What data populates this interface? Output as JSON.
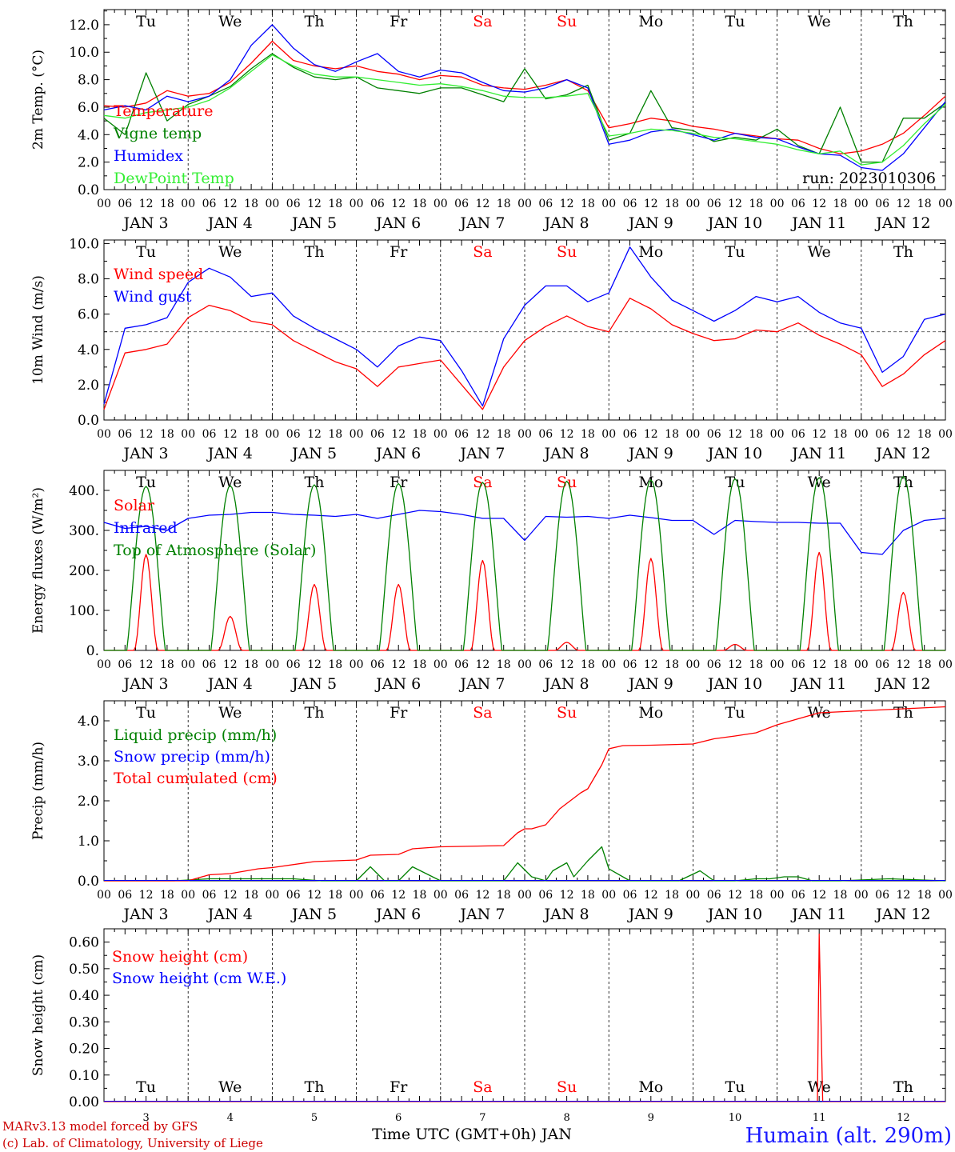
{
  "chart_data": [
    {
      "type": "line",
      "ylabel": "2m Temp. (°C)",
      "ylim": [
        0,
        13.1
      ],
      "yticks": [
        0,
        2,
        4,
        6,
        8,
        10,
        12
      ],
      "ytick_labels": [
        "0.0",
        "2.0",
        "4.0",
        "6.0",
        "8.0",
        "10.0",
        "12.0"
      ],
      "annotation": "run: 2023010306",
      "legend": "top-left",
      "x": [
        0,
        6,
        12,
        18,
        24,
        30,
        36,
        42,
        48,
        54,
        60,
        66,
        72,
        78,
        84,
        90,
        96,
        102,
        108,
        114,
        120,
        126,
        132,
        138,
        144,
        150,
        156,
        162,
        168,
        174,
        180,
        186,
        192,
        198,
        204,
        210,
        216,
        222,
        228,
        234,
        240
      ],
      "series": [
        {
          "name": "Temperature",
          "color": "#ff0000",
          "values": [
            6.1,
            6.0,
            6.3,
            7.2,
            6.8,
            7.0,
            7.8,
            9.2,
            10.8,
            9.4,
            9.0,
            8.8,
            9.0,
            8.6,
            8.4,
            8.0,
            8.3,
            8.2,
            7.6,
            7.4,
            7.3,
            7.6,
            8.0,
            7.2,
            4.5,
            4.8,
            5.2,
            5.0,
            4.6,
            4.4,
            4.1,
            3.9,
            3.7,
            3.6,
            3.0,
            2.6,
            2.8,
            3.3,
            4.1,
            5.4,
            6.8
          ]
        },
        {
          "name": "Vigne temp",
          "color": "#008000",
          "values": [
            5.2,
            4.0,
            8.5,
            5.0,
            6.2,
            6.8,
            7.5,
            8.8,
            9.9,
            8.9,
            8.2,
            8.0,
            8.2,
            7.4,
            7.2,
            7.0,
            7.4,
            7.4,
            6.9,
            6.4,
            8.8,
            6.6,
            6.9,
            7.6,
            3.6,
            4.1,
            7.2,
            4.5,
            4.3,
            3.5,
            3.8,
            3.6,
            4.4,
            3.2,
            2.6,
            6.0,
            2.0,
            2.0,
            5.2,
            5.2,
            6.3
          ]
        },
        {
          "name": "Humidex",
          "color": "#0000ff",
          "values": [
            5.8,
            6.1,
            5.8,
            6.8,
            6.4,
            6.8,
            8.0,
            10.5,
            12.0,
            10.3,
            9.1,
            8.6,
            9.3,
            9.9,
            8.6,
            8.2,
            8.7,
            8.5,
            7.8,
            7.2,
            7.1,
            7.4,
            8.0,
            7.4,
            3.3,
            3.6,
            4.2,
            4.4,
            4.0,
            3.6,
            4.1,
            3.8,
            3.7,
            3.1,
            2.6,
            2.5,
            1.6,
            1.4,
            2.6,
            4.5,
            6.4
          ]
        },
        {
          "name": "DewPoint Temp",
          "color": "#33ee33",
          "values": [
            5.4,
            5.2,
            5.6,
            5.8,
            6.0,
            6.5,
            7.4,
            8.6,
            9.8,
            9.0,
            8.4,
            8.2,
            8.2,
            8.0,
            7.8,
            7.6,
            7.7,
            7.5,
            7.2,
            6.8,
            6.7,
            6.7,
            6.8,
            7.0,
            3.9,
            4.1,
            4.4,
            4.3,
            4.1,
            3.8,
            3.7,
            3.5,
            3.3,
            2.9,
            2.6,
            2.8,
            1.8,
            2.0,
            3.2,
            4.8,
            6.2
          ]
        }
      ]
    },
    {
      "type": "line",
      "ylabel": "10m Wind (m/s)",
      "ylim": [
        0,
        10.2
      ],
      "yticks": [
        0,
        2,
        4,
        6,
        8,
        10
      ],
      "ytick_labels": [
        "0.0",
        "2.0",
        "4.0",
        "6.0",
        "8.0",
        "10.0"
      ],
      "reference_line": 5.0,
      "legend": "top-left",
      "x": [
        0,
        6,
        12,
        18,
        24,
        30,
        36,
        42,
        48,
        54,
        60,
        66,
        72,
        78,
        84,
        90,
        96,
        102,
        108,
        114,
        120,
        126,
        132,
        138,
        144,
        150,
        156,
        162,
        168,
        174,
        180,
        186,
        192,
        198,
        204,
        210,
        216,
        222,
        228,
        234,
        240
      ],
      "series": [
        {
          "name": "Wind speed",
          "color": "#ff0000",
          "values": [
            0.6,
            3.8,
            4.0,
            4.3,
            5.8,
            6.5,
            6.2,
            5.6,
            5.4,
            4.5,
            3.9,
            3.3,
            2.9,
            1.9,
            3.0,
            3.2,
            3.4,
            2.0,
            0.6,
            3.0,
            4.5,
            5.3,
            5.9,
            5.3,
            5.0,
            6.9,
            6.3,
            5.4,
            4.9,
            4.5,
            4.6,
            5.1,
            5.0,
            5.5,
            4.8,
            4.3,
            3.7,
            1.9,
            2.6,
            3.7,
            4.5
          ]
        },
        {
          "name": "Wind gust",
          "color": "#0000ff",
          "values": [
            0.9,
            5.2,
            5.4,
            5.8,
            7.8,
            8.6,
            8.1,
            7.0,
            7.2,
            5.9,
            5.2,
            4.6,
            4.0,
            3.0,
            4.2,
            4.7,
            4.5,
            2.8,
            0.8,
            4.6,
            6.5,
            7.6,
            7.6,
            6.7,
            7.2,
            9.8,
            8.1,
            6.8,
            6.2,
            5.6,
            6.2,
            7.0,
            6.7,
            7.0,
            6.1,
            5.5,
            5.2,
            2.7,
            3.6,
            5.7,
            6.0
          ]
        }
      ]
    },
    {
      "type": "line",
      "ylabel": "Energy fluxes (W/m²)",
      "ylim": [
        0,
        450
      ],
      "yticks": [
        0,
        100,
        200,
        300,
        400
      ],
      "ytick_labels": [
        "0.",
        "100.",
        "200.",
        "300.",
        "400."
      ],
      "legend": "top-left",
      "series": [
        {
          "name": "Solar",
          "color": "#ff0000",
          "daily_peaks": [
            240,
            85,
            165,
            165,
            225,
            20,
            230,
            15,
            245,
            145
          ]
        },
        {
          "name": "Infrared",
          "color": "#0000ff",
          "x": [
            0,
            6,
            12,
            18,
            24,
            30,
            36,
            42,
            48,
            54,
            60,
            66,
            72,
            78,
            84,
            90,
            96,
            102,
            108,
            114,
            120,
            126,
            132,
            138,
            144,
            150,
            156,
            162,
            168,
            174,
            180,
            186,
            192,
            198,
            204,
            210,
            216,
            222,
            228,
            234,
            240
          ],
          "values": [
            320,
            305,
            310,
            300,
            330,
            338,
            340,
            345,
            345,
            340,
            338,
            335,
            340,
            330,
            340,
            350,
            347,
            340,
            330,
            330,
            275,
            335,
            333,
            335,
            330,
            338,
            332,
            325,
            325,
            290,
            325,
            322,
            320,
            320,
            318,
            318,
            245,
            240,
            300,
            325,
            330
          ]
        },
        {
          "name": "Top of Atmosphere (Solar)",
          "color": "#008000",
          "daily_peaks": [
            410,
            412,
            414,
            417,
            420,
            423,
            426,
            429,
            432,
            435
          ]
        }
      ]
    },
    {
      "type": "line",
      "ylabel": "Precip (mm/h)",
      "ylim": [
        0,
        4.5
      ],
      "yticks": [
        0,
        1,
        2,
        3,
        4
      ],
      "ytick_labels": [
        "0.0",
        "1.0",
        "2.0",
        "3.0",
        "4.0"
      ],
      "legend": "top-left",
      "series": [
        {
          "name": "Liquid precip (mm/h)",
          "color": "#008000",
          "x": [
            0,
            20,
            30,
            40,
            48,
            54,
            62,
            72,
            76,
            80,
            84,
            88,
            96,
            104,
            110,
            114,
            118,
            122,
            126,
            128,
            132,
            134,
            138,
            142,
            144,
            150,
            158,
            164,
            170,
            174,
            176,
            180,
            186,
            190,
            194,
            198,
            200,
            202,
            210,
            224,
            240
          ],
          "values": [
            0,
            0,
            0.05,
            0.05,
            0.05,
            0.05,
            0,
            0,
            0.35,
            0,
            0,
            0.35,
            0,
            0,
            0,
            0,
            0.45,
            0.1,
            0,
            0.25,
            0.45,
            0.1,
            0.5,
            0.85,
            0.3,
            0,
            0,
            0,
            0.25,
            0,
            0,
            0,
            0.05,
            0.05,
            0.1,
            0.1,
            0.05,
            0,
            0,
            0.05,
            0
          ]
        },
        {
          "name": "Snow precip (mm/h)",
          "color": "#0000ff",
          "values": []
        },
        {
          "name": "Total cumulated (cm)",
          "color": "#ff0000",
          "x": [
            0,
            24,
            30,
            36,
            44,
            48,
            60,
            72,
            76,
            84,
            88,
            96,
            108,
            114,
            118,
            120,
            122,
            126,
            130,
            136,
            138,
            142,
            144,
            148,
            156,
            168,
            174,
            180,
            186,
            192,
            204,
            216,
            228,
            240
          ],
          "values": [
            0,
            0,
            0.15,
            0.18,
            0.3,
            0.33,
            0.48,
            0.52,
            0.64,
            0.66,
            0.8,
            0.85,
            0.87,
            0.88,
            1.2,
            1.3,
            1.3,
            1.4,
            1.8,
            2.2,
            2.3,
            2.9,
            3.3,
            3.38,
            3.39,
            3.42,
            3.55,
            3.62,
            3.7,
            3.9,
            4.2,
            4.25,
            4.3,
            4.35
          ]
        }
      ]
    },
    {
      "type": "line",
      "ylabel": "Snow height (cm)",
      "ylim": [
        0,
        0.65
      ],
      "yticks": [
        0,
        0.1,
        0.2,
        0.3,
        0.4,
        0.5,
        0.6
      ],
      "ytick_labels": [
        "0.00",
        "0.10",
        "0.20",
        "0.30",
        "0.40",
        "0.50",
        "0.60"
      ],
      "xlabel": "Time UTC (GMT+0h) JAN",
      "legend": "top-left",
      "series": [
        {
          "name": "Snow height (cm)",
          "color": "#ff0000",
          "x": [
            0,
            202,
            203.5,
            204,
            205,
            206,
            240
          ],
          "values": [
            0,
            0,
            0,
            0.63,
            0,
            0,
            0
          ]
        },
        {
          "name": "Snow height (cm W.E.)",
          "color": "#0000ff",
          "values": []
        }
      ]
    }
  ],
  "days": [
    {
      "weekday": "Tu",
      "date": "JAN  3",
      "num": "3",
      "weekend": false
    },
    {
      "weekday": "We",
      "date": "JAN  4",
      "num": "4",
      "weekend": false
    },
    {
      "weekday": "Th",
      "date": "JAN  5",
      "num": "5",
      "weekend": false
    },
    {
      "weekday": "Fr",
      "date": "JAN  6",
      "num": "6",
      "weekend": false
    },
    {
      "weekday": "Sa",
      "date": "JAN  7",
      "num": "7",
      "weekend": true
    },
    {
      "weekday": "Su",
      "date": "JAN  8",
      "num": "8",
      "weekend": true
    },
    {
      "weekday": "Mo",
      "date": "JAN  9",
      "num": "9",
      "weekend": false
    },
    {
      "weekday": "Tu",
      "date": "JAN 10",
      "num": "10",
      "weekend": false
    },
    {
      "weekday": "We",
      "date": "JAN 11",
      "num": "11",
      "weekend": false
    },
    {
      "weekday": "Th",
      "date": "JAN 12",
      "num": "12",
      "weekend": false
    }
  ],
  "hour_labels": [
    "00",
    "06",
    "12",
    "18"
  ],
  "footer": {
    "credit_line1": "MARv3.13 model forced by GFS",
    "credit_line2": "(c) Lab. of Climatology, University of Liege",
    "station": "Humain (alt. 290m)"
  },
  "colors": {
    "weekend": "#ff0000",
    "station": "#1a1aff",
    "credit": "#cc0000"
  }
}
